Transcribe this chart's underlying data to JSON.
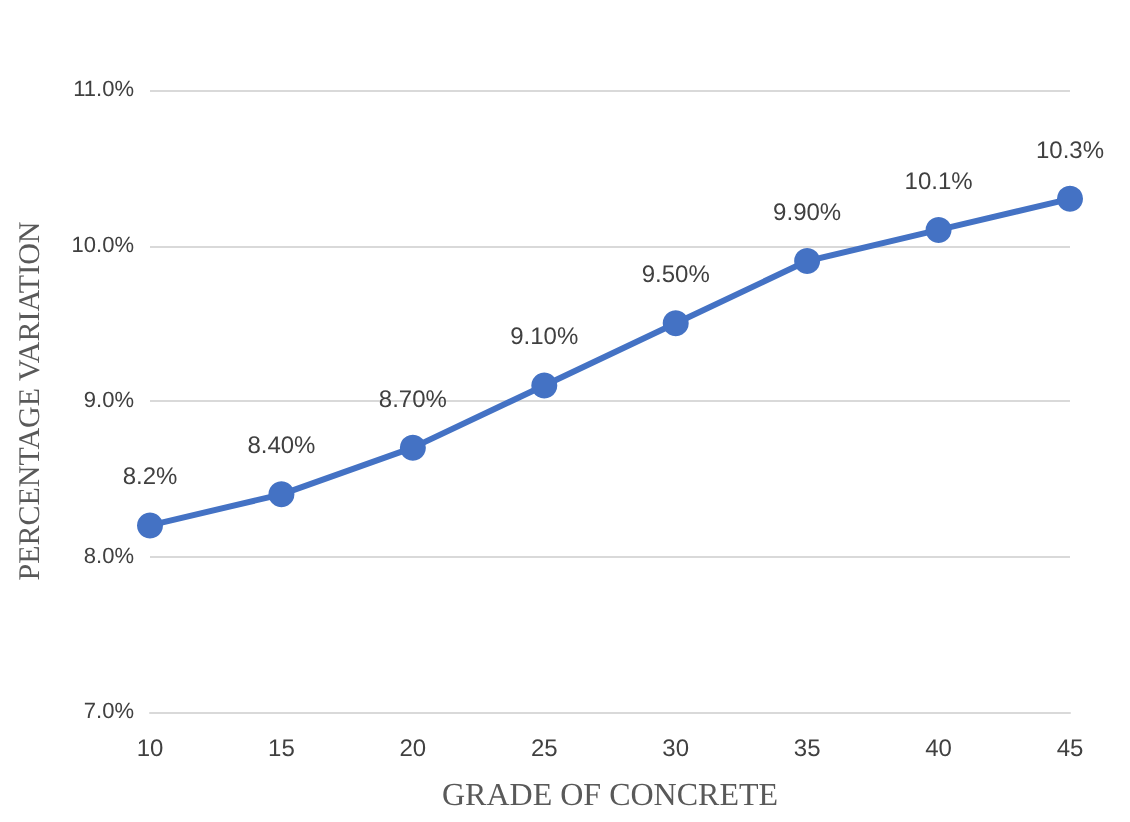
{
  "chart_data": {
    "type": "line",
    "xlabel": "GRADE OF CONCRETE",
    "ylabel": "PERCENTAGE VARIATION",
    "categories": [
      "10",
      "15",
      "20",
      "25",
      "30",
      "35",
      "40",
      "45"
    ],
    "series": [
      {
        "color": "#4472c4",
        "values": [
          8.2,
          8.4,
          8.7,
          9.1,
          9.5,
          9.9,
          10.1,
          10.3
        ],
        "value_labels": [
          "8.2%",
          "8.40%",
          "8.70%",
          "9.10%",
          "9.50%",
          "9.90%",
          "10.1%",
          "10.3%"
        ]
      }
    ],
    "ylim": [
      7,
      11
    ],
    "yticks": [
      {
        "value": 7,
        "label": "7.0%"
      },
      {
        "value": 8,
        "label": "8.0%"
      },
      {
        "value": 9,
        "label": "9.0%"
      },
      {
        "value": 10,
        "label": "10.0%"
      },
      {
        "value": 11,
        "label": "11.0%"
      }
    ],
    "grid": "y",
    "marker": "circle",
    "line_style": "solid"
  }
}
